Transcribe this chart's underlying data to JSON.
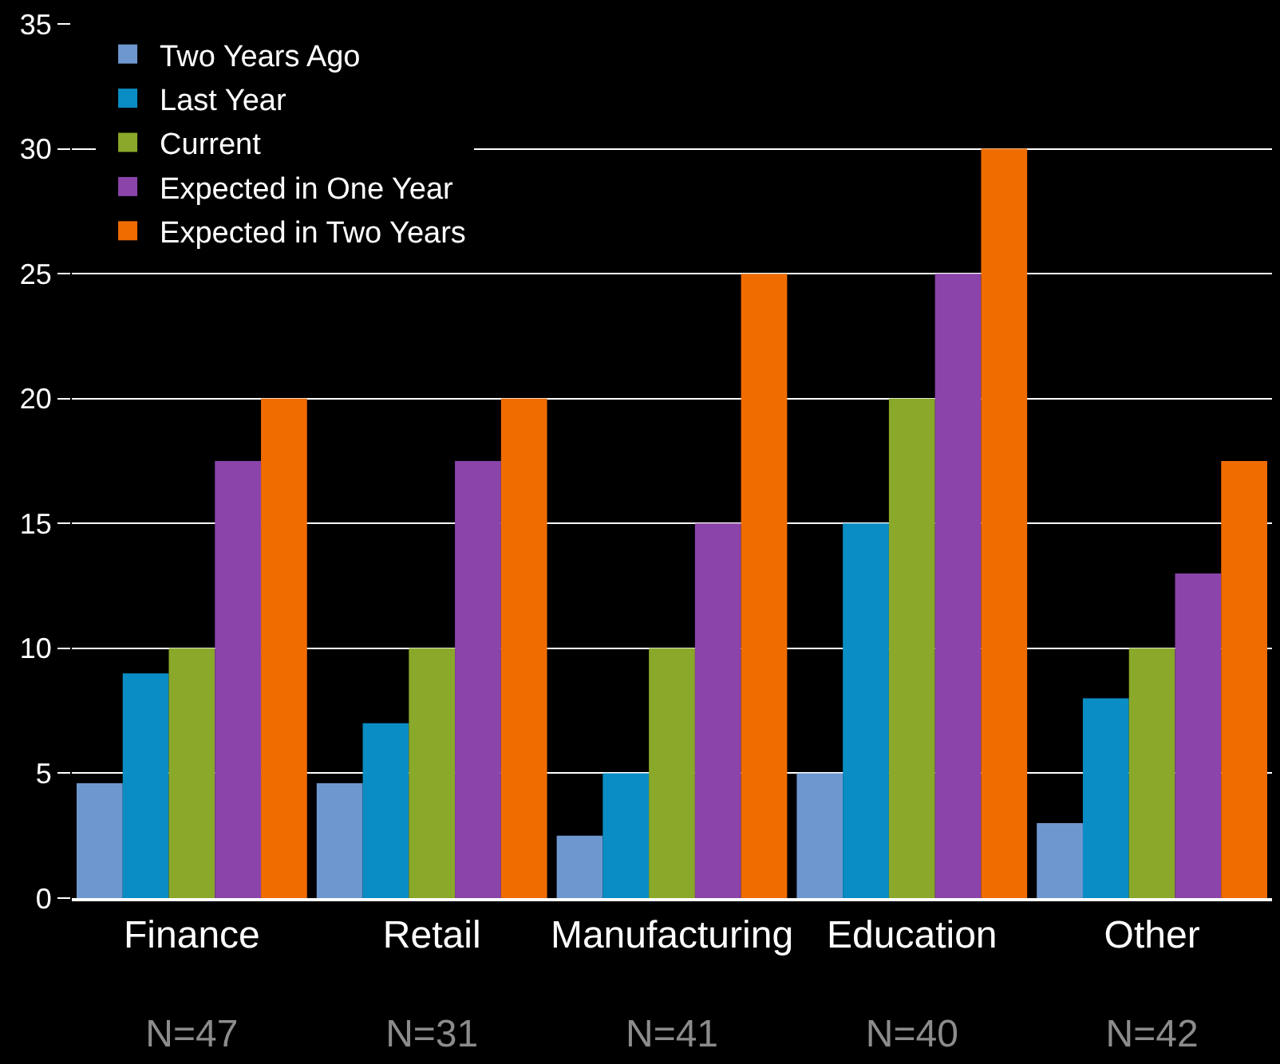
{
  "chart_data": {
    "type": "bar",
    "categories": [
      "Finance\nN=47",
      "Retail\nN=31",
      "Manufacturing\nN=41",
      "Education\nN=40",
      "Other\nN=42"
    ],
    "series": [
      {
        "name": "Two Years Ago",
        "color": "#6f97cf",
        "values": [
          4.6,
          4.6,
          2.5,
          5,
          3
        ]
      },
      {
        "name": "Last Year",
        "color": "#0a8dc4",
        "values": [
          9,
          7,
          5,
          15,
          8
        ]
      },
      {
        "name": "Current",
        "color": "#8aa82a",
        "values": [
          10,
          10,
          10,
          20,
          10
        ]
      },
      {
        "name": "Expected in One Year",
        "color": "#8a44aa",
        "values": [
          17.5,
          17.5,
          15,
          25,
          13
        ]
      },
      {
        "name": "Expected in Two Years",
        "color": "#f06c00",
        "values": [
          20,
          20,
          25,
          30,
          17.5
        ]
      }
    ],
    "ylim": [
      0,
      35
    ],
    "yticks": [
      0,
      5,
      10,
      15,
      20,
      25,
      30,
      35
    ],
    "grid": "y",
    "legend": "top left"
  }
}
